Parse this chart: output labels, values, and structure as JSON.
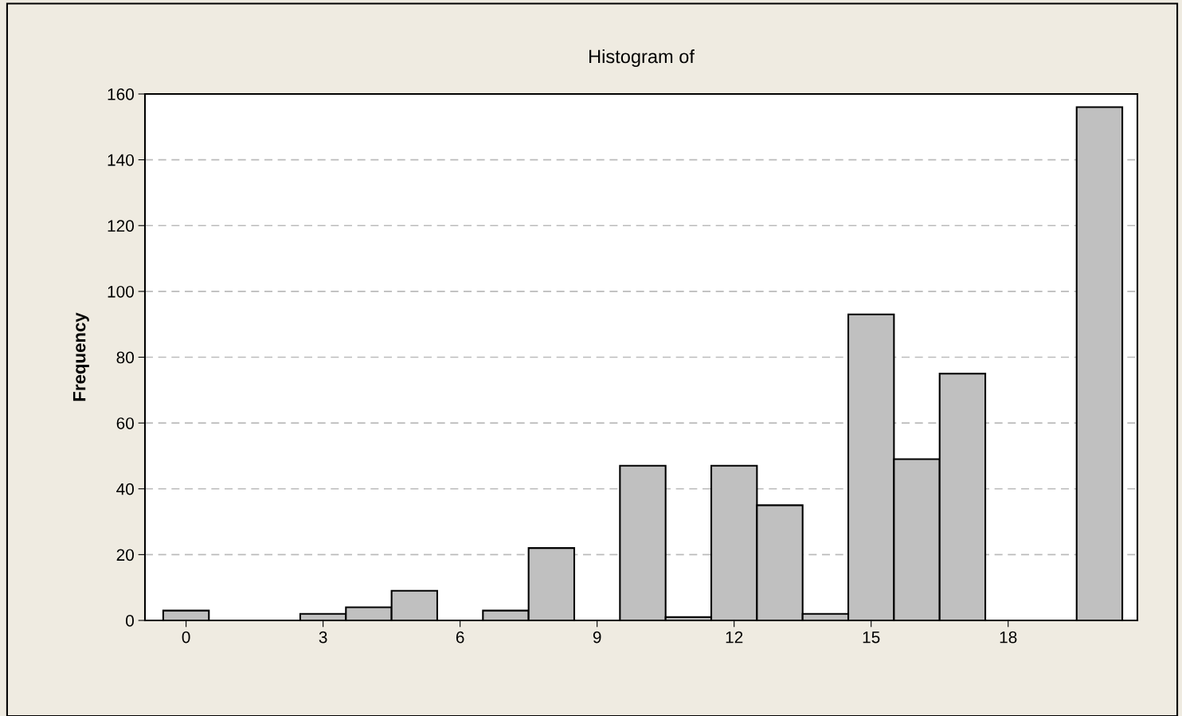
{
  "chart_data": {
    "type": "histogram",
    "title": "Histogram of",
    "ylabel": "Frequency",
    "bins": [
      -0.5,
      0.5,
      1.5,
      2.5,
      3.5,
      4.5,
      5.5,
      6.5,
      7.5,
      8.5,
      9.5,
      10.5,
      11.5,
      12.5,
      13.5,
      14.5,
      15.5,
      16.5,
      17.5,
      18.5,
      19.5,
      20.5
    ],
    "values": [
      3,
      0,
      0,
      2,
      4,
      9,
      0,
      3,
      22,
      0,
      47,
      1,
      47,
      35,
      2,
      93,
      49,
      75,
      0,
      0,
      156
    ],
    "color": "#c0c0c0",
    "xlim": [
      -0.9,
      20.83
    ],
    "xticks": [
      0,
      3,
      6,
      9,
      12,
      15,
      18
    ],
    "ylim": [
      0,
      160
    ],
    "yticks": [
      0,
      20,
      40,
      60,
      80,
      100,
      120,
      140,
      160
    ],
    "grid": "y"
  }
}
